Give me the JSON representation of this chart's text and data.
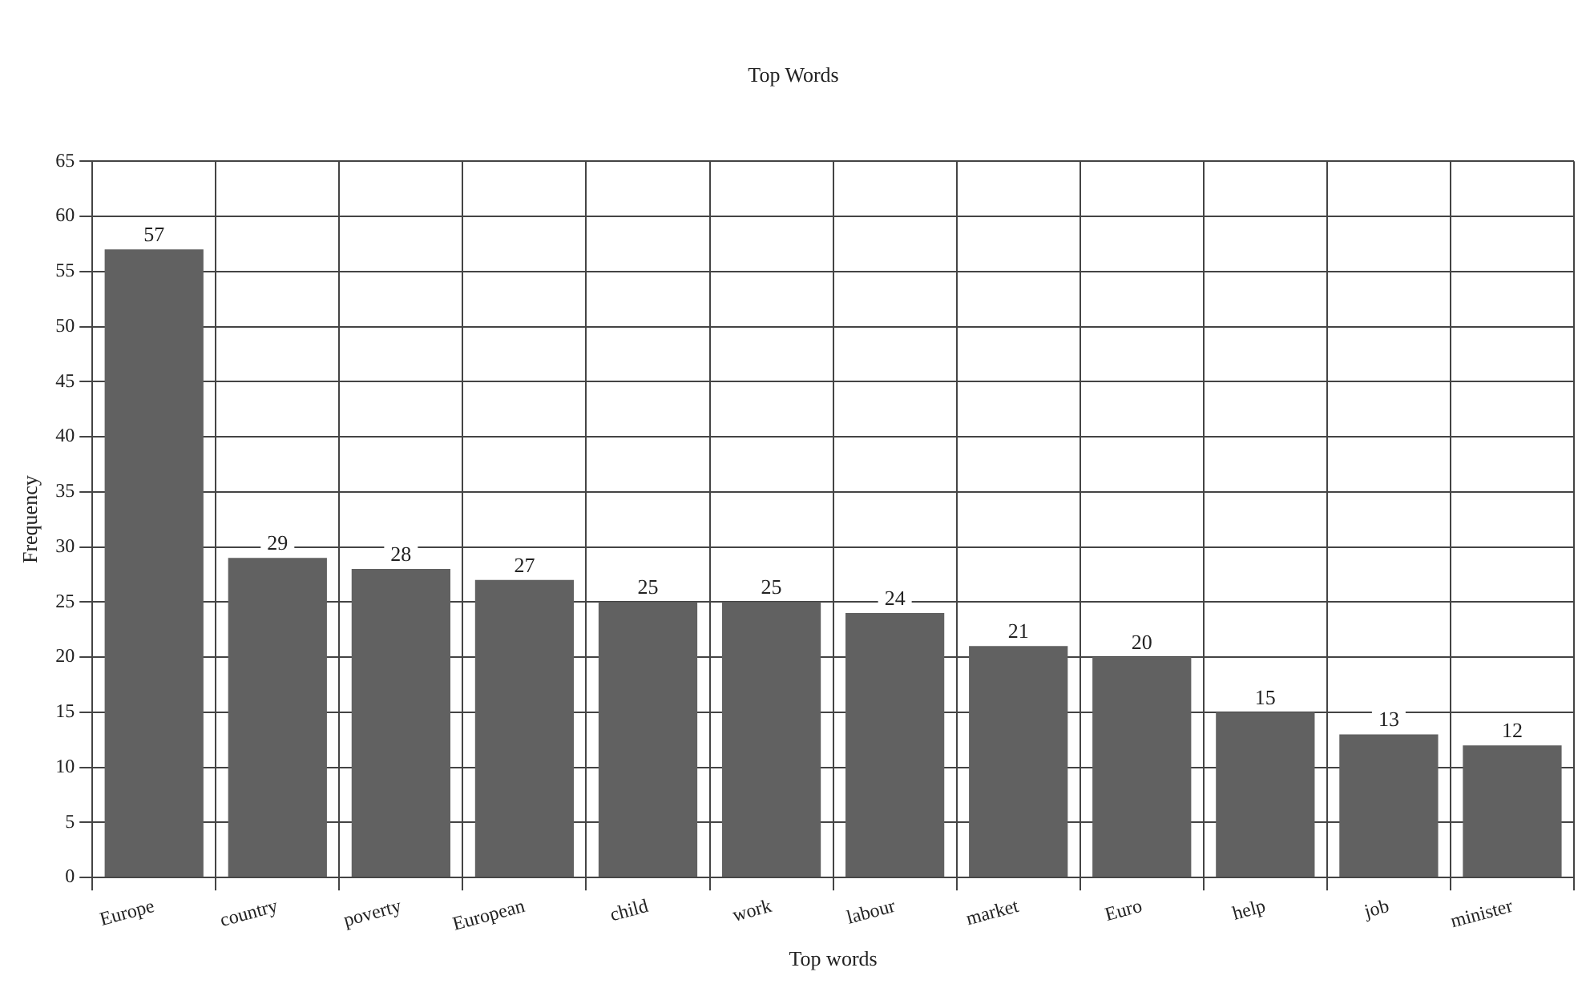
{
  "chart_data": {
    "type": "bar",
    "title": "Top Words",
    "xlabel": "Top words",
    "ylabel": "Frequency",
    "categories": [
      "Europe",
      "country",
      "poverty",
      "European",
      "child",
      "work",
      "labour",
      "market",
      "Euro",
      "help",
      "job",
      "minister"
    ],
    "values": [
      57,
      29,
      28,
      27,
      25,
      25,
      24,
      21,
      20,
      15,
      13,
      12
    ],
    "color": "#616161",
    "ylim": [
      0,
      65
    ],
    "yticks": [
      0,
      5,
      10,
      15,
      20,
      25,
      30,
      35,
      40,
      45,
      50,
      55,
      60,
      65
    ],
    "grid": true,
    "data_labels": true,
    "legend": false
  }
}
